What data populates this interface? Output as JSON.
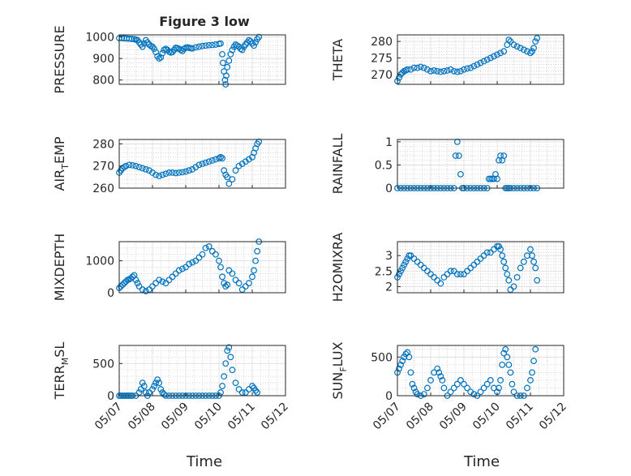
{
  "figure": {
    "title": "Figure 3 low",
    "xlabel": "Time",
    "xtick_labels": [
      "05/07",
      "05/08",
      "05/09",
      "05/10",
      "05/11",
      "05/12"
    ],
    "marker_color": "#0072BD"
  },
  "chart_data": [
    {
      "type": "scatter",
      "name": "pressure",
      "ylabel": "PRESSURE",
      "ylim": [
        780,
        1010
      ],
      "yticks": [
        800,
        900,
        1000
      ],
      "xlim": [
        "05/07",
        "05/12"
      ],
      "grid": "on",
      "series": [
        {
          "x": [
            7.0,
            7.08,
            7.15,
            7.22,
            7.3,
            7.38,
            7.45,
            7.5,
            7.55,
            7.6,
            7.65,
            7.7,
            7.75,
            7.8,
            7.85,
            7.9,
            7.95,
            8.0,
            8.05,
            8.1,
            8.15,
            8.2,
            8.25,
            8.3,
            8.35,
            8.4,
            8.45,
            8.5,
            8.55,
            8.6,
            8.65,
            8.7,
            8.75,
            8.8,
            8.85,
            8.9,
            8.95,
            9.0,
            9.05,
            9.1,
            9.15,
            9.2,
            9.3,
            9.4,
            9.5,
            9.6,
            9.7,
            9.8,
            9.9,
            10.0,
            10.05,
            10.1,
            10.12,
            10.15,
            10.18,
            10.2,
            10.22,
            10.25,
            10.3,
            10.35,
            10.4,
            10.45,
            10.5,
            10.55,
            10.6,
            10.65,
            10.7,
            10.75,
            10.8,
            10.85,
            10.9,
            10.95,
            11.0,
            11.05,
            11.1,
            11.15,
            11.2
          ],
          "y": [
            995,
            995,
            994,
            993,
            992,
            991,
            990,
            988,
            985,
            975,
            965,
            955,
            970,
            985,
            975,
            965,
            958,
            955,
            945,
            930,
            910,
            900,
            905,
            925,
            940,
            945,
            940,
            932,
            928,
            930,
            940,
            950,
            948,
            945,
            940,
            935,
            945,
            950,
            952,
            950,
            948,
            947,
            952,
            955,
            958,
            960,
            962,
            963,
            965,
            968,
            970,
            920,
            880,
            840,
            800,
            780,
            820,
            860,
            890,
            920,
            940,
            955,
            965,
            960,
            955,
            945,
            940,
            955,
            965,
            975,
            985,
            980,
            970,
            960,
            975,
            990,
            1000
          ]
        }
      ]
    },
    {
      "type": "scatter",
      "name": "theta",
      "ylabel": "THETA",
      "ylim": [
        267,
        282
      ],
      "yticks": [
        270,
        275,
        280
      ],
      "xlim": [
        "05/07",
        "05/12"
      ],
      "grid": "on",
      "series": [
        {
          "x": [
            7.0,
            7.05,
            7.1,
            7.15,
            7.2,
            7.25,
            7.3,
            7.4,
            7.5,
            7.6,
            7.7,
            7.8,
            7.9,
            8.0,
            8.1,
            8.2,
            8.3,
            8.4,
            8.5,
            8.6,
            8.7,
            8.8,
            8.9,
            9.0,
            9.1,
            9.2,
            9.3,
            9.4,
            9.5,
            9.6,
            9.7,
            9.8,
            9.9,
            10.0,
            10.1,
            10.2,
            10.3,
            10.35,
            10.4,
            10.5,
            10.6,
            10.7,
            10.8,
            10.9,
            11.0,
            11.05,
            11.1,
            11.15,
            11.2
          ],
          "y": [
            268,
            269,
            270,
            270.5,
            271,
            271.2,
            271.5,
            271.5,
            272,
            272,
            272.3,
            272,
            271.5,
            271,
            271.2,
            271,
            270.8,
            271,
            271.2,
            271.5,
            271,
            270.8,
            271,
            271.5,
            271.8,
            272,
            272.5,
            273,
            273.5,
            274,
            274.5,
            275,
            275.5,
            276,
            276.5,
            277,
            279,
            280.5,
            280,
            279,
            278.5,
            278,
            277.5,
            277,
            276.5,
            277,
            278,
            280,
            281
          ]
        }
      ]
    },
    {
      "type": "scatter",
      "name": "air_temp",
      "ylabel": "AIR",
      "ylabel_sub": "T",
      "ylabel_rest": "EMP",
      "ylim": [
        260,
        282
      ],
      "yticks": [
        260,
        270,
        280
      ],
      "xlim": [
        "05/07",
        "05/12"
      ],
      "grid": "on",
      "series": [
        {
          "x": [
            7.0,
            7.05,
            7.1,
            7.15,
            7.2,
            7.3,
            7.4,
            7.5,
            7.6,
            7.7,
            7.8,
            7.9,
            8.0,
            8.1,
            8.2,
            8.3,
            8.4,
            8.5,
            8.6,
            8.7,
            8.8,
            8.9,
            9.0,
            9.1,
            9.2,
            9.3,
            9.4,
            9.5,
            9.6,
            9.7,
            9.8,
            9.9,
            10.0,
            10.05,
            10.1,
            10.15,
            10.2,
            10.25,
            10.3,
            10.4,
            10.5,
            10.6,
            10.7,
            10.8,
            10.9,
            11.0,
            11.05,
            11.1,
            11.15,
            11.2
          ],
          "y": [
            267,
            268,
            269,
            269.5,
            270,
            270.5,
            270.3,
            270,
            269.5,
            269,
            268.5,
            268,
            267,
            266,
            265.5,
            266,
            266.5,
            267,
            267,
            266.8,
            267,
            267.2,
            267.5,
            268,
            268.5,
            269.5,
            270.5,
            271,
            271.5,
            272,
            272.5,
            273,
            273.5,
            274,
            273.5,
            268,
            266,
            265,
            262,
            264,
            268,
            270,
            271,
            272,
            273,
            274,
            276,
            278,
            280,
            281
          ]
        }
      ]
    },
    {
      "type": "scatter",
      "name": "rainfall",
      "ylabel": "RAINFALL",
      "ylim": [
        0,
        1.05
      ],
      "yticks": [
        0,
        0.5,
        1
      ],
      "xlim": [
        "05/07",
        "05/12"
      ],
      "grid": "on",
      "series": [
        {
          "x": [
            7.0,
            7.1,
            7.2,
            7.3,
            7.4,
            7.5,
            7.6,
            7.7,
            7.8,
            7.9,
            8.0,
            8.1,
            8.2,
            8.3,
            8.4,
            8.5,
            8.6,
            8.7,
            8.75,
            8.8,
            8.85,
            8.9,
            8.95,
            9.0,
            9.1,
            9.2,
            9.3,
            9.4,
            9.5,
            9.6,
            9.7,
            9.75,
            9.8,
            9.85,
            9.9,
            9.95,
            10.0,
            10.05,
            10.1,
            10.15,
            10.2,
            10.25,
            10.3,
            10.35,
            10.4,
            10.5,
            10.6,
            10.7,
            10.8,
            10.9,
            11.0,
            11.1,
            11.2
          ],
          "y": [
            0,
            0,
            0,
            0,
            0,
            0,
            0,
            0,
            0,
            0,
            0,
            0,
            0,
            0,
            0,
            0,
            0,
            0,
            0.7,
            1.0,
            0.7,
            0.3,
            0,
            0,
            0,
            0,
            0,
            0,
            0,
            0,
            0,
            0.2,
            0.2,
            0.2,
            0.2,
            0.3,
            0.2,
            0.6,
            0.7,
            0.6,
            0.7,
            0,
            0,
            0,
            0,
            0,
            0,
            0,
            0,
            0,
            0,
            0,
            0
          ]
        }
      ]
    },
    {
      "type": "scatter",
      "name": "mixdepth",
      "ylabel": "MIXDEPTH",
      "ylim": [
        0,
        1600
      ],
      "yticks": [
        0,
        1000
      ],
      "xlim": [
        "05/07",
        "05/12"
      ],
      "grid": "on",
      "series": [
        {
          "x": [
            7.0,
            7.05,
            7.1,
            7.15,
            7.2,
            7.25,
            7.3,
            7.35,
            7.4,
            7.45,
            7.5,
            7.55,
            7.6,
            7.7,
            7.8,
            7.9,
            8.0,
            8.1,
            8.2,
            8.3,
            8.4,
            8.5,
            8.6,
            8.7,
            8.8,
            8.9,
            9.0,
            9.1,
            9.2,
            9.3,
            9.4,
            9.5,
            9.6,
            9.7,
            9.8,
            9.9,
            10.0,
            10.05,
            10.1,
            10.15,
            10.2,
            10.25,
            10.3,
            10.4,
            10.5,
            10.6,
            10.7,
            10.8,
            10.9,
            11.0,
            11.05,
            11.1,
            11.15,
            11.2
          ],
          "y": [
            150,
            200,
            250,
            300,
            350,
            400,
            420,
            450,
            500,
            550,
            400,
            300,
            200,
            100,
            50,
            100,
            200,
            300,
            400,
            350,
            300,
            400,
            500,
            600,
            700,
            750,
            800,
            900,
            950,
            1000,
            1100,
            1200,
            1400,
            1450,
            1300,
            1200,
            1000,
            800,
            500,
            300,
            200,
            250,
            700,
            600,
            400,
            300,
            100,
            200,
            300,
            500,
            700,
            1000,
            1300,
            1600
          ]
        }
      ]
    },
    {
      "type": "scatter",
      "name": "h2omixra",
      "ylabel": "H2OMIXRA",
      "ylim": [
        1.8,
        3.45
      ],
      "yticks": [
        2,
        2.5,
        3
      ],
      "xlim": [
        "05/07",
        "05/12"
      ],
      "grid": "on",
      "series": [
        {
          "x": [
            7.0,
            7.05,
            7.1,
            7.15,
            7.2,
            7.25,
            7.3,
            7.35,
            7.4,
            7.5,
            7.6,
            7.7,
            7.8,
            7.9,
            8.0,
            8.1,
            8.2,
            8.3,
            8.4,
            8.5,
            8.6,
            8.7,
            8.8,
            8.9,
            9.0,
            9.1,
            9.2,
            9.3,
            9.4,
            9.5,
            9.6,
            9.7,
            9.8,
            9.9,
            10.0,
            10.05,
            10.1,
            10.15,
            10.2,
            10.25,
            10.3,
            10.35,
            10.4,
            10.5,
            10.6,
            10.7,
            10.8,
            10.9,
            11.0,
            11.05,
            11.1,
            11.15,
            11.2
          ],
          "y": [
            2.3,
            2.4,
            2.5,
            2.6,
            2.7,
            2.8,
            2.9,
            3.0,
            3.0,
            2.9,
            2.8,
            2.7,
            2.6,
            2.5,
            2.4,
            2.3,
            2.2,
            2.1,
            2.3,
            2.4,
            2.5,
            2.5,
            2.4,
            2.4,
            2.4,
            2.5,
            2.6,
            2.7,
            2.8,
            2.9,
            3.0,
            3.1,
            3.1,
            3.2,
            3.3,
            3.3,
            3.2,
            3.0,
            2.8,
            2.6,
            2.4,
            2.2,
            1.9,
            2.0,
            2.3,
            2.6,
            2.8,
            3.0,
            3.2,
            3.0,
            2.8,
            2.6,
            2.2
          ]
        }
      ]
    },
    {
      "type": "scatter",
      "name": "terr_msl",
      "ylabel": "TERR",
      "ylabel_sub": "M",
      "ylabel_rest": "SL",
      "ylim": [
        0,
        780
      ],
      "yticks": [
        0,
        500
      ],
      "xlim": [
        "05/07",
        "05/12"
      ],
      "grid": "on",
      "series": [
        {
          "x": [
            7.0,
            7.05,
            7.1,
            7.15,
            7.2,
            7.25,
            7.3,
            7.35,
            7.4,
            7.5,
            7.6,
            7.65,
            7.7,
            7.75,
            7.8,
            7.85,
            7.9,
            8.0,
            8.05,
            8.1,
            8.15,
            8.2,
            8.25,
            8.3,
            8.35,
            8.4,
            8.5,
            8.6,
            8.7,
            8.8,
            8.9,
            9.0,
            9.1,
            9.2,
            9.3,
            9.4,
            9.5,
            9.6,
            9.7,
            9.8,
            9.9,
            10.0,
            10.05,
            10.1,
            10.15,
            10.2,
            10.25,
            10.3,
            10.35,
            10.4,
            10.5,
            10.6,
            10.7,
            10.8,
            10.9,
            11.0,
            11.05,
            11.1,
            11.15
          ],
          "y": [
            0,
            0,
            0,
            0,
            0,
            0,
            0,
            0,
            0,
            0,
            50,
            100,
            200,
            150,
            50,
            0,
            50,
            100,
            150,
            200,
            250,
            200,
            100,
            50,
            20,
            0,
            0,
            0,
            0,
            0,
            0,
            0,
            0,
            0,
            0,
            0,
            0,
            0,
            0,
            0,
            0,
            0,
            50,
            150,
            300,
            500,
            700,
            750,
            600,
            400,
            200,
            100,
            50,
            50,
            100,
            150,
            120,
            80,
            50
          ]
        }
      ]
    },
    {
      "type": "scatter",
      "name": "sun_flux",
      "ylabel": "SUN",
      "ylabel_sub": "F",
      "ylabel_rest": "LUX",
      "ylim": [
        0,
        650
      ],
      "yticks": [
        0,
        500
      ],
      "xlim": [
        "05/07",
        "05/12"
      ],
      "grid": "on",
      "series": [
        {
          "x": [
            7.0,
            7.05,
            7.1,
            7.15,
            7.2,
            7.25,
            7.3,
            7.35,
            7.4,
            7.45,
            7.5,
            7.55,
            7.6,
            7.7,
            7.8,
            7.9,
            8.0,
            8.1,
            8.2,
            8.25,
            8.3,
            8.35,
            8.4,
            8.5,
            8.6,
            8.7,
            8.8,
            8.9,
            9.0,
            9.1,
            9.2,
            9.3,
            9.4,
            9.5,
            9.6,
            9.7,
            9.8,
            9.9,
            10.0,
            10.05,
            10.1,
            10.15,
            10.2,
            10.25,
            10.3,
            10.35,
            10.4,
            10.45,
            10.5,
            10.6,
            10.7,
            10.8,
            10.9,
            11.0,
            11.05,
            11.1,
            11.15
          ],
          "y": [
            300,
            350,
            400,
            450,
            500,
            540,
            560,
            500,
            300,
            150,
            100,
            50,
            20,
            0,
            20,
            100,
            200,
            300,
            350,
            300,
            250,
            200,
            100,
            0,
            50,
            100,
            150,
            200,
            150,
            100,
            50,
            20,
            0,
            50,
            100,
            150,
            200,
            100,
            50,
            100,
            200,
            400,
            550,
            600,
            500,
            400,
            300,
            150,
            50,
            0,
            0,
            0,
            100,
            200,
            300,
            450,
            600
          ]
        }
      ]
    }
  ]
}
